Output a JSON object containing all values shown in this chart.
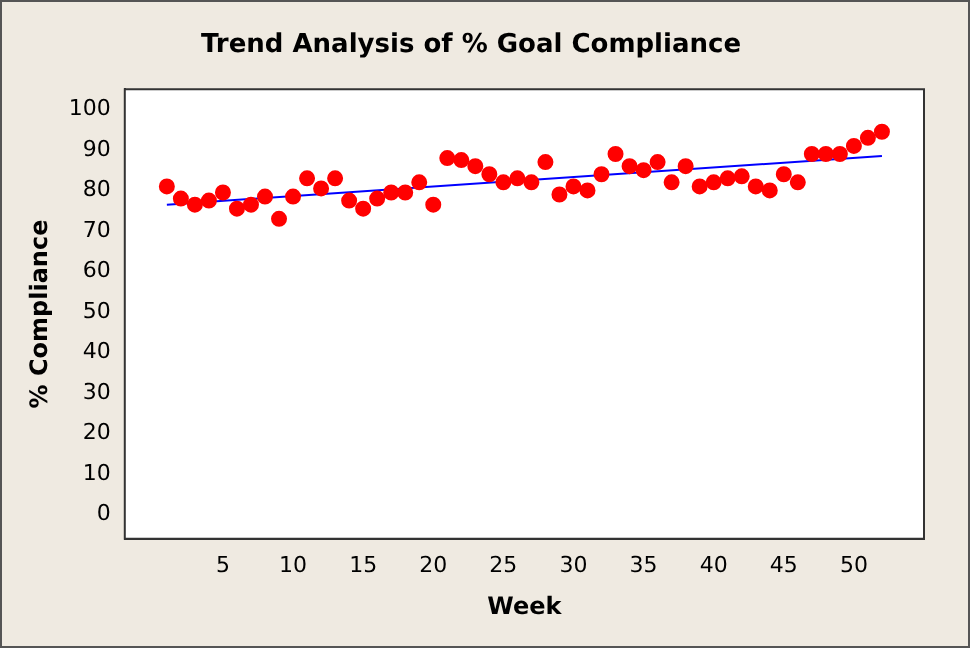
{
  "chart_data": {
    "type": "scatter",
    "title": "Trend Analysis of % Goal Compliance",
    "xlabel": "Week",
    "ylabel": "% Compliance",
    "x": [
      1,
      2,
      3,
      4,
      5,
      6,
      7,
      8,
      9,
      10,
      11,
      12,
      13,
      14,
      15,
      16,
      17,
      18,
      19,
      20,
      21,
      22,
      23,
      24,
      25,
      26,
      27,
      28,
      29,
      30,
      31,
      32,
      33,
      34,
      35,
      36,
      37,
      38,
      39,
      40,
      41,
      42,
      43,
      44,
      45,
      46,
      47,
      48,
      49,
      50,
      51,
      52
    ],
    "series": [
      {
        "color": "#ff0000",
        "marker": "circle",
        "values": [
          81,
          78,
          76.5,
          77.5,
          79.5,
          75.5,
          76.5,
          78.5,
          73,
          78.5,
          83,
          80.5,
          83,
          77.5,
          75.5,
          78,
          79.5,
          79.5,
          82,
          76.5,
          88,
          87.5,
          86,
          84,
          82,
          83,
          82,
          87,
          79,
          81,
          80,
          84,
          89,
          86,
          85,
          87,
          82,
          86,
          81,
          82,
          83,
          83.5,
          81,
          80,
          84,
          82,
          89,
          89,
          89,
          91,
          93,
          94.5
        ]
      },
      {
        "type": "line",
        "color": "#0000ff",
        "x": [
          1,
          52
        ],
        "values": [
          76.5,
          88.5
        ]
      }
    ],
    "xlim": [
      -2,
      55
    ],
    "xticks": [
      5,
      10,
      15,
      20,
      25,
      30,
      35,
      40,
      45,
      50
    ],
    "ylim": [
      -6,
      105
    ],
    "yticks": [
      0,
      10,
      20,
      30,
      40,
      50,
      60,
      70,
      80,
      90,
      100
    ],
    "grid": false,
    "legend": false
  }
}
